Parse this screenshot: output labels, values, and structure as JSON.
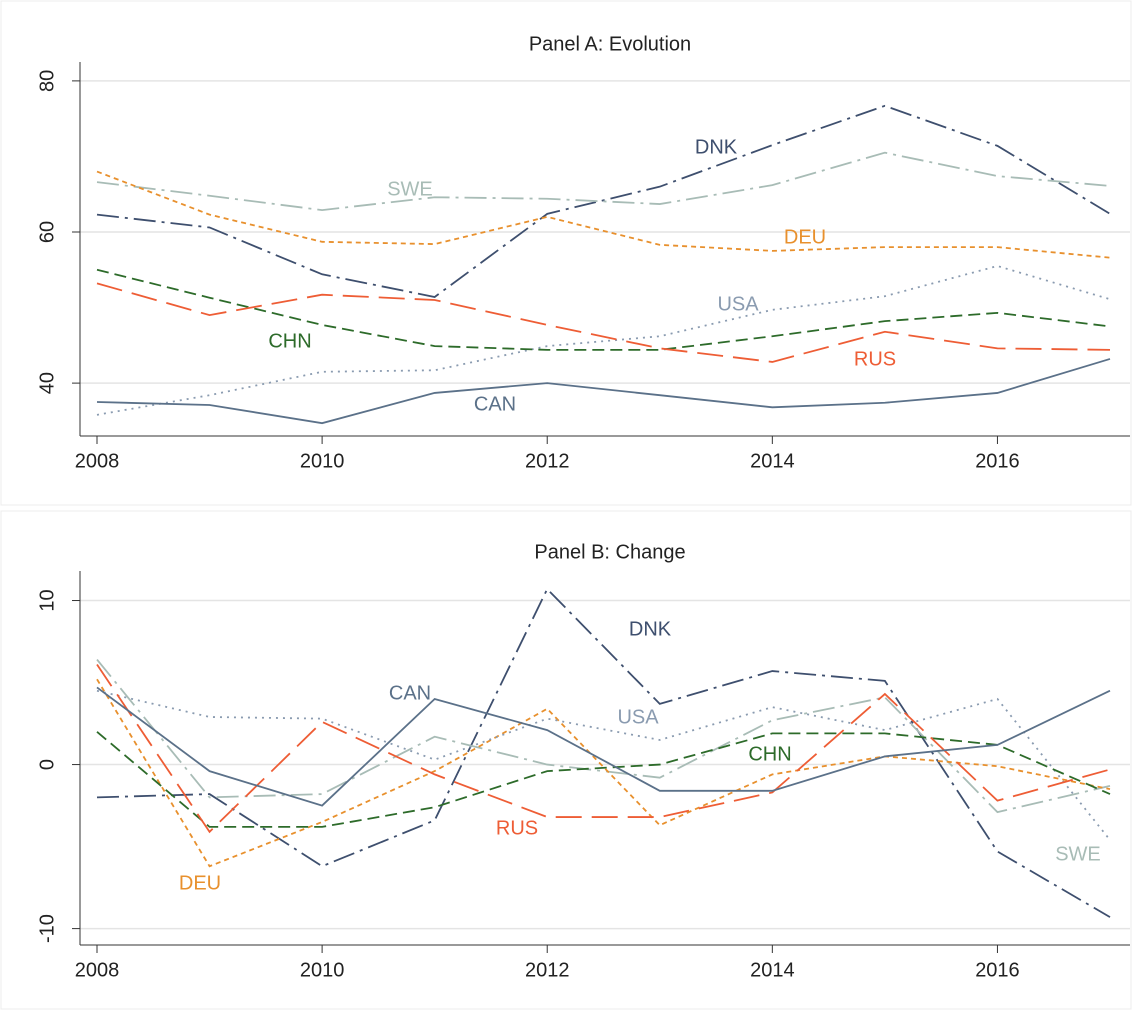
{
  "chart_data": [
    {
      "type": "line",
      "title": "Panel A: Evolution",
      "x": [
        2008,
        2009,
        2010,
        2011,
        2012,
        2013,
        2014,
        2015,
        2016,
        2017
      ],
      "xlim": [
        2008,
        2017
      ],
      "xticks": [
        2008,
        2010,
        2012,
        2014,
        2016
      ],
      "ylim": [
        33,
        82.5
      ],
      "yticks": [
        40,
        60,
        80
      ],
      "grid": true,
      "series": [
        {
          "name": "DNK",
          "color": "#3e4f6e",
          "values": [
            62.3,
            60.6,
            54.4,
            51.4,
            62.4,
            66,
            71.5,
            76.7,
            71.4,
            62.4
          ]
        },
        {
          "name": "SWE",
          "color": "#a8bcb6",
          "values": [
            66.6,
            64.8,
            62.9,
            64.6,
            64.4,
            63.7,
            66.2,
            70.5,
            67.4,
            66.1
          ]
        },
        {
          "name": "DEU",
          "color": "#e8902d",
          "values": [
            68,
            62.3,
            58.7,
            58.4,
            62,
            58.3,
            57.5,
            58,
            58,
            56.6
          ]
        },
        {
          "name": "USA",
          "color": "#8a9bb0",
          "values": [
            35.8,
            38.4,
            41.5,
            41.7,
            44.9,
            46.2,
            49.7,
            51.5,
            55.5,
            51.1
          ]
        },
        {
          "name": "CHN",
          "color": "#2d6b2a",
          "values": [
            55,
            51.3,
            47.7,
            44.9,
            44.4,
            44.4,
            46.2,
            48.2,
            49.3,
            47.5
          ]
        },
        {
          "name": "RUS",
          "color": "#ee5d35",
          "values": [
            53.2,
            49,
            51.7,
            51,
            47.7,
            44.6,
            42.8,
            46.8,
            44.6,
            44.4
          ]
        },
        {
          "name": "CAN",
          "color": "#5b7189",
          "values": [
            37.5,
            37.1,
            34.7,
            38.7,
            40,
            38.4,
            36.8,
            37.4,
            38.7,
            43.2
          ]
        }
      ]
    },
    {
      "type": "line",
      "title": "Panel B: Change",
      "x": [
        2008,
        2009,
        2010,
        2011,
        2012,
        2013,
        2014,
        2015,
        2016,
        2017
      ],
      "xlim": [
        2008,
        2017
      ],
      "xticks": [
        2008,
        2010,
        2012,
        2014,
        2016
      ],
      "ylim": [
        -11,
        11.8
      ],
      "yticks": [
        -10,
        0,
        10
      ],
      "grid": true,
      "series": [
        {
          "name": "DNK",
          "color": "#3e4f6e",
          "values": [
            -2,
            -1.8,
            -6.2,
            -3.4,
            10.7,
            3.7,
            5.7,
            5.1,
            -5.3,
            -9.3
          ]
        },
        {
          "name": "SWE",
          "color": "#a8bcb6",
          "values": [
            6.4,
            -2,
            -1.8,
            1.7,
            0,
            -0.8,
            2.7,
            4.1,
            -2.9,
            -1.3
          ]
        },
        {
          "name": "DEU",
          "color": "#e8902d",
          "values": [
            5.2,
            -6.2,
            -3.5,
            -0.4,
            3.4,
            -3.7,
            -0.6,
            0.5,
            -0.1,
            -1.5
          ]
        },
        {
          "name": "USA",
          "color": "#8a9bb0",
          "values": [
            4.5,
            2.9,
            2.8,
            0.3,
            2.8,
            1.5,
            3.5,
            2.1,
            4,
            -4.6
          ]
        },
        {
          "name": "CHN",
          "color": "#2d6b2a",
          "values": [
            2,
            -3.8,
            -3.8,
            -2.6,
            -0.4,
            0,
            1.9,
            1.9,
            1.2,
            -1.8
          ]
        },
        {
          "name": "RUS",
          "color": "#ee5d35",
          "values": [
            6.1,
            -4.1,
            2.6,
            -0.6,
            -3.2,
            -3.2,
            -1.7,
            4.3,
            -2.2,
            -0.3
          ]
        },
        {
          "name": "CAN",
          "color": "#5b7189",
          "values": [
            4.7,
            -0.4,
            -2.5,
            4,
            2.1,
            -1.6,
            -1.6,
            0.5,
            1.2,
            4.5
          ]
        }
      ]
    }
  ]
}
